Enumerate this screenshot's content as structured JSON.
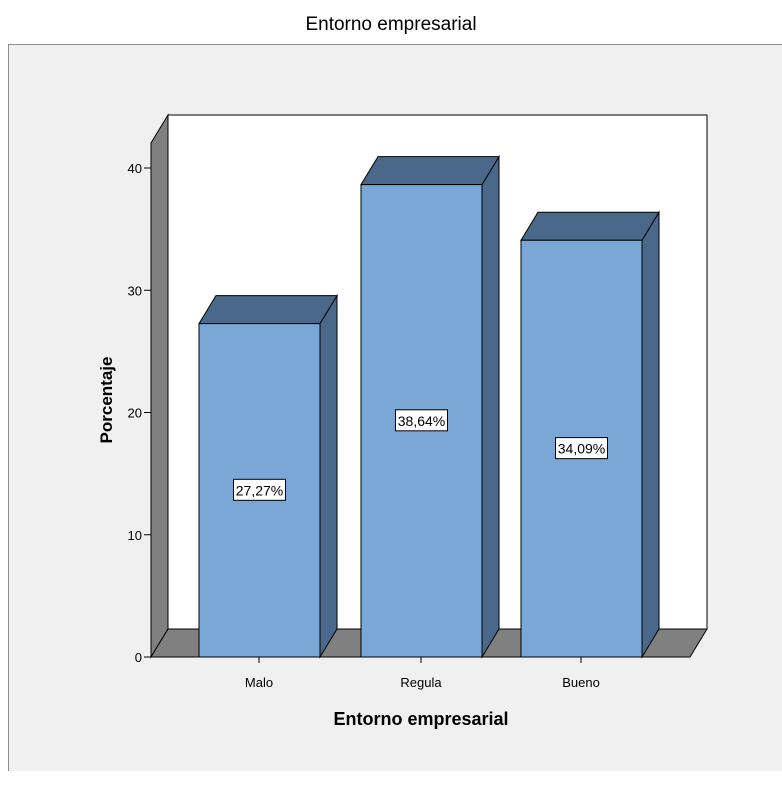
{
  "chart_data": {
    "type": "bar",
    "title": "Entorno empresarial",
    "xlabel": "Entorno empresarial",
    "ylabel": "Porcentaje",
    "categories": [
      "Malo",
      "Regula",
      "Bueno"
    ],
    "values": [
      27.27,
      38.64,
      34.09
    ],
    "data_labels": [
      "27,27%",
      "38,64%",
      "34,09%"
    ],
    "yticks": [
      0,
      10,
      20,
      30,
      40
    ],
    "ylim": [
      0,
      40
    ],
    "grid": false,
    "legend": "none",
    "style": "3d"
  },
  "colors": {
    "bar_front": "#7aa7d6",
    "bar_side": "#4a6889",
    "floor": "#808080",
    "plot_bg": "#ffffff",
    "frame_bg": "#f0f0f0"
  }
}
